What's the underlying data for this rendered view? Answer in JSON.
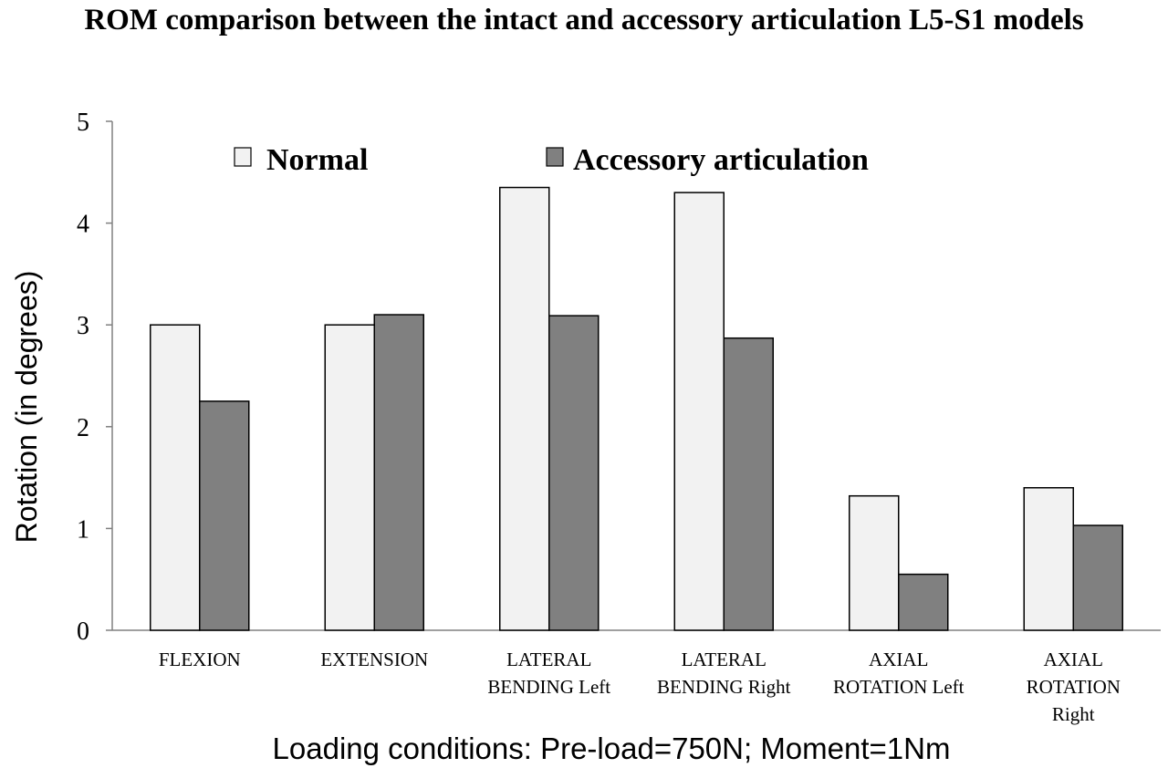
{
  "chart_data": {
    "type": "bar",
    "title": "ROM comparison between the intact and accessory articulation L5-S1 models",
    "ylabel": "Rotation  (in degrees)",
    "xlabel": "Loading conditions: Pre-load=750N; Moment=1Nm",
    "ylim": [
      0,
      5
    ],
    "yticks": [
      "0",
      "1",
      "2",
      "3",
      "4",
      "5"
    ],
    "categories": [
      [
        "FLEXION"
      ],
      [
        "EXTENSION"
      ],
      [
        "LATERAL",
        "BENDING Left"
      ],
      [
        "LATERAL",
        "BENDING Right"
      ],
      [
        "AXIAL",
        "ROTATION Left"
      ],
      [
        "AXIAL",
        "ROTATION",
        "Right"
      ]
    ],
    "series": [
      {
        "name": "Normal",
        "color": "#f2f2f2",
        "values": [
          3.0,
          3.0,
          4.35,
          4.3,
          1.32,
          1.4
        ]
      },
      {
        "name": "Accessory articulation",
        "color": "#808080",
        "values": [
          2.25,
          3.1,
          3.09,
          2.87,
          0.55,
          1.03
        ]
      }
    ],
    "grid": false,
    "legend_position": "top"
  }
}
